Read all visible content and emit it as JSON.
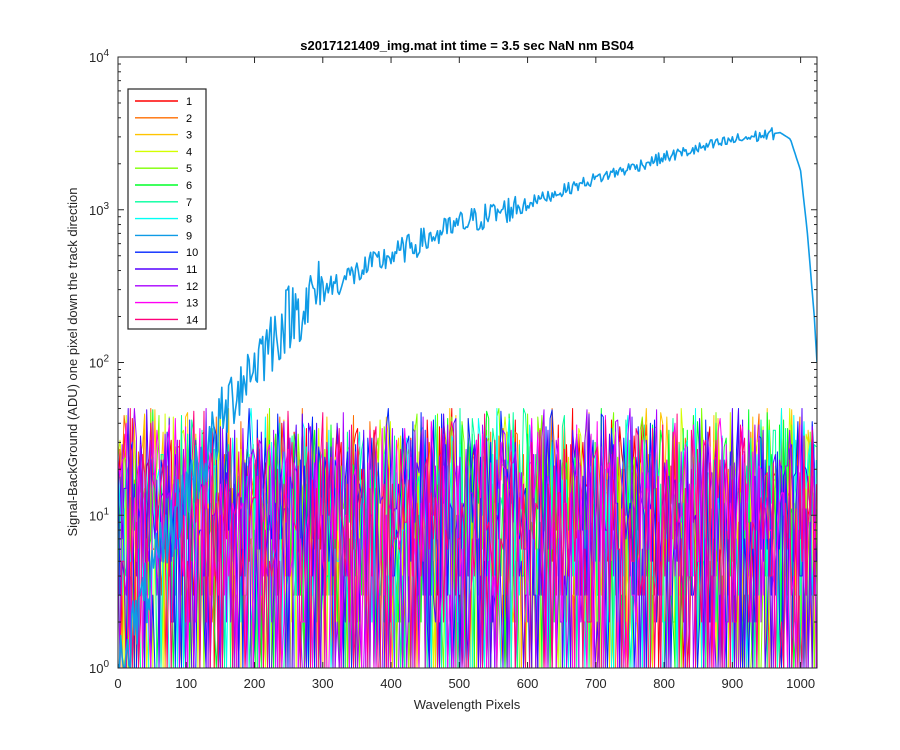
{
  "chart_data": {
    "type": "line",
    "title": "s2017121409_img.mat int time = 3.5 sec  NaN nm BS04",
    "xlabel": "Wavelength Pixels",
    "ylabel": "Signal-BackGround (ADU) one pixel down the track direction",
    "xlim": [
      0,
      1024
    ],
    "ylim": [
      1,
      10000
    ],
    "yscale": "log",
    "x_ticks": [
      0,
      100,
      200,
      300,
      400,
      500,
      600,
      700,
      800,
      900,
      1000
    ],
    "y_ticks": [
      {
        "base": "10",
        "exp": "0",
        "value": 1
      },
      {
        "base": "10",
        "exp": "1",
        "value": 10
      },
      {
        "base": "10",
        "exp": "2",
        "value": 100
      },
      {
        "base": "10",
        "exp": "3",
        "value": 1000
      },
      {
        "base": "10",
        "exp": "4",
        "value": 10000
      }
    ],
    "legend_position": "top-left",
    "grid": false,
    "noise_level_range": [
      1,
      50
    ],
    "series": [
      {
        "name": "1",
        "color": "#ff0000",
        "kind": "noise"
      },
      {
        "name": "2",
        "color": "#ff6e00",
        "kind": "noise"
      },
      {
        "name": "3",
        "color": "#ffc400",
        "kind": "noise"
      },
      {
        "name": "4",
        "color": "#d4ff00",
        "kind": "noise"
      },
      {
        "name": "5",
        "color": "#7eff00",
        "kind": "noise"
      },
      {
        "name": "6",
        "color": "#00ff28",
        "kind": "noise"
      },
      {
        "name": "7",
        "color": "#00ff9e",
        "kind": "noise"
      },
      {
        "name": "8",
        "color": "#00fff5",
        "kind": "noise"
      },
      {
        "name": "9",
        "color": "#0f9be6",
        "kind": "signal",
        "x": [
          0,
          100,
          130,
          150,
          175,
          200,
          250,
          300,
          400,
          500,
          600,
          700,
          800,
          900,
          950,
          970,
          985,
          1000,
          1010,
          1020,
          1024
        ],
        "values": [
          1,
          15,
          25,
          40,
          70,
          100,
          200,
          300,
          500,
          800,
          1100,
          1600,
          2200,
          2850,
          3100,
          3200,
          2900,
          1800,
          700,
          200,
          100
        ]
      },
      {
        "name": "10",
        "color": "#0024ff",
        "kind": "noise"
      },
      {
        "name": "11",
        "color": "#5500ff",
        "kind": "noise"
      },
      {
        "name": "12",
        "color": "#a800ff",
        "kind": "noise"
      },
      {
        "name": "13",
        "color": "#ff00f5",
        "kind": "noise"
      },
      {
        "name": "14",
        "color": "#ff007a",
        "kind": "noise"
      }
    ]
  }
}
